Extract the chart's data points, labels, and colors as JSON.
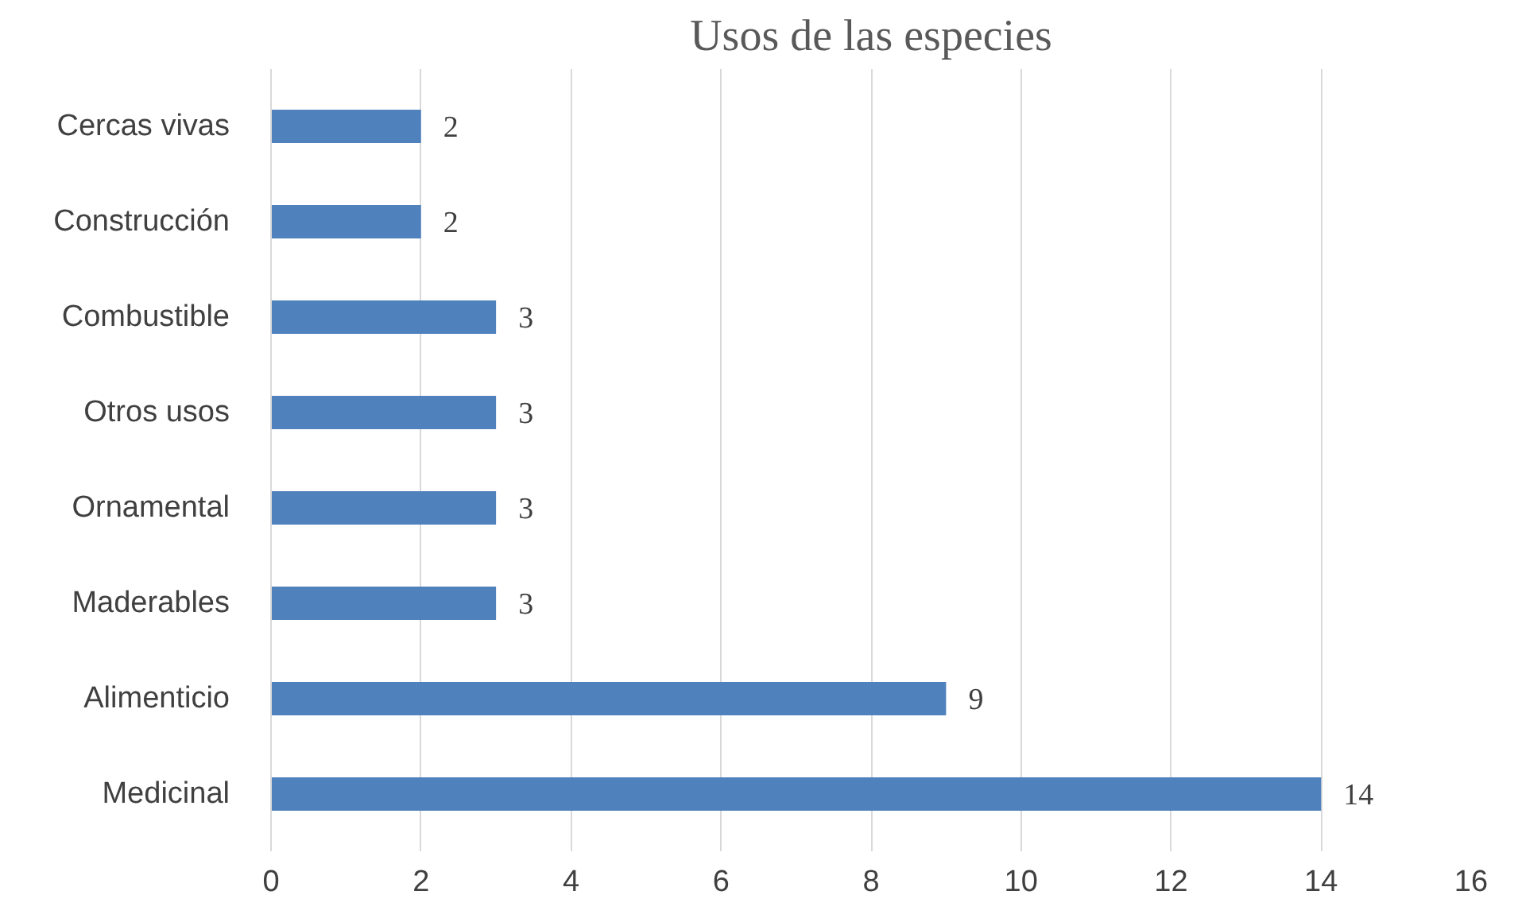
{
  "chart_data": {
    "type": "bar",
    "orientation": "horizontal",
    "title": "Usos de las especies",
    "categories": [
      "Cercas vivas",
      "Construcción",
      "Combustible",
      "Otros usos",
      "Ornamental",
      "Maderables",
      "Alimenticio",
      "Medicinal"
    ],
    "values": [
      2,
      2,
      3,
      3,
      3,
      3,
      9,
      14
    ],
    "color": "#4f81bd",
    "xlim": [
      0,
      16
    ],
    "xticks": [
      0,
      2,
      4,
      6,
      8,
      10,
      12,
      14,
      16
    ],
    "grid": "x",
    "data_labels": true
  }
}
